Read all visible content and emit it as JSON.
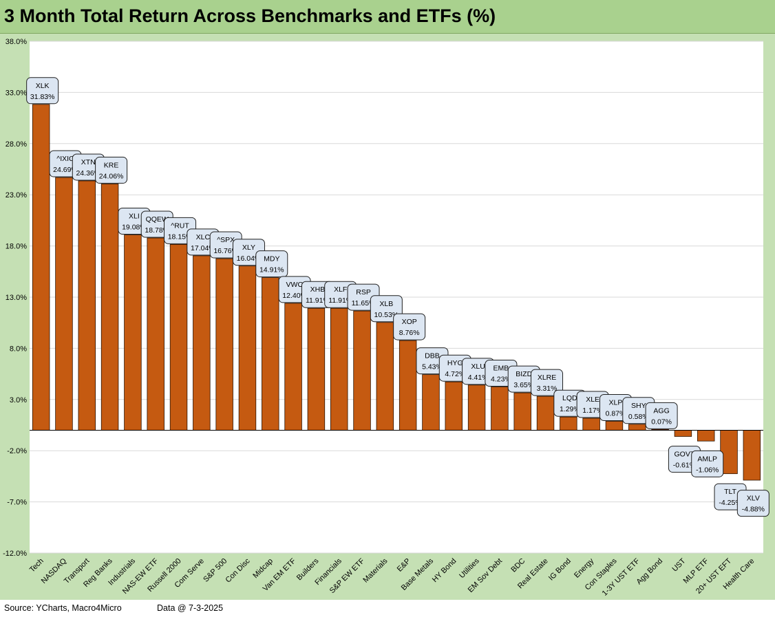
{
  "title": "3 Month Total Return Across Benchmarks and ETFs (%)",
  "footer": {
    "source": "Source: YCharts, Macro4Micro",
    "data_date": "Data @ 7-3-2025"
  },
  "colors": {
    "bar": "#c55a11",
    "bar_outline": "#2b1200",
    "plot_background": "#ffffff",
    "chart_background": "#c5e0b4",
    "title_background": "#a9d18e",
    "label_box": "#dce6f2",
    "grid": "#d9d9d9"
  },
  "chart_data": {
    "type": "bar",
    "title": "3 Month Total Return Across Benchmarks and ETFs (%)",
    "xlabel": "",
    "ylabel": "",
    "ylim": [
      -12,
      38
    ],
    "yticks": [
      -12,
      -7,
      -2,
      3,
      8,
      13,
      18,
      23,
      28,
      33,
      38
    ],
    "ytick_labels": [
      "-12.0%",
      "-7.0%",
      "-2.0%",
      "3.0%",
      "8.0%",
      "13.0%",
      "18.0%",
      "23.0%",
      "28.0%",
      "33.0%",
      "38.0%"
    ],
    "grid": true,
    "legend": "none",
    "categories": [
      "Tech",
      "NASDAQ",
      "Transport",
      "Reg Banks",
      "Industrials",
      "NAS-EW ETF",
      "Russell 2000",
      "Com Serve",
      "S&P 500",
      "Con Disc",
      "Midcap",
      "Van EM ETF",
      "Builders",
      "Financials",
      "S&P EW ETF",
      "Materials",
      "E&P",
      "Base Metals",
      "HY Bond",
      "Utilities",
      "EM Sov Debt",
      "BDC",
      "Real Estate",
      "IG Bond",
      "Energy",
      "Con Staples",
      "1-3Y UST ETF",
      "Agg Bond",
      "UST",
      "MLP ETF",
      "20+ UST EFT",
      "Health Care"
    ],
    "tickers": [
      "XLK",
      "^IXIC",
      "XTN",
      "KRE",
      "XLI",
      "QQEW",
      "^RUT",
      "XLC",
      "^SPX",
      "XLY",
      "MDY",
      "VWO",
      "XHB",
      "XLF",
      "RSP",
      "XLB",
      "XOP",
      "DBB",
      "HYG",
      "XLU",
      "EMB",
      "BIZD",
      "XLRE",
      "LQD",
      "XLE",
      "XLP",
      "SHY",
      "AGG",
      "GOVT",
      "AMLP",
      "TLT",
      "XLV"
    ],
    "values": [
      31.83,
      24.69,
      24.36,
      24.06,
      19.08,
      18.78,
      18.15,
      17.04,
      16.76,
      16.04,
      14.91,
      12.4,
      11.91,
      11.91,
      11.65,
      10.53,
      8.76,
      5.43,
      4.72,
      4.41,
      4.23,
      3.65,
      3.31,
      1.29,
      1.17,
      0.87,
      0.58,
      0.07,
      -0.61,
      -1.06,
      -4.25,
      -4.88
    ],
    "value_labels": [
      "31.83%",
      "24.69%",
      "24.36%",
      "24.06%",
      "19.08%",
      "18.78%",
      "18.15%",
      "17.04%",
      "16.76%",
      "16.04%",
      "14.91%",
      "12.40%",
      "11.91%",
      "11.91%",
      "11.65%",
      "10.53%",
      "8.76%",
      "5.43%",
      "4.72%",
      "4.41%",
      "4.23%",
      "3.65%",
      "3.31%",
      "1.29%",
      "1.17%",
      "0.87%",
      "0.58%",
      "0.07%",
      "-0.61%",
      "-1.06%",
      "-4.25%",
      "-4.88%"
    ]
  }
}
